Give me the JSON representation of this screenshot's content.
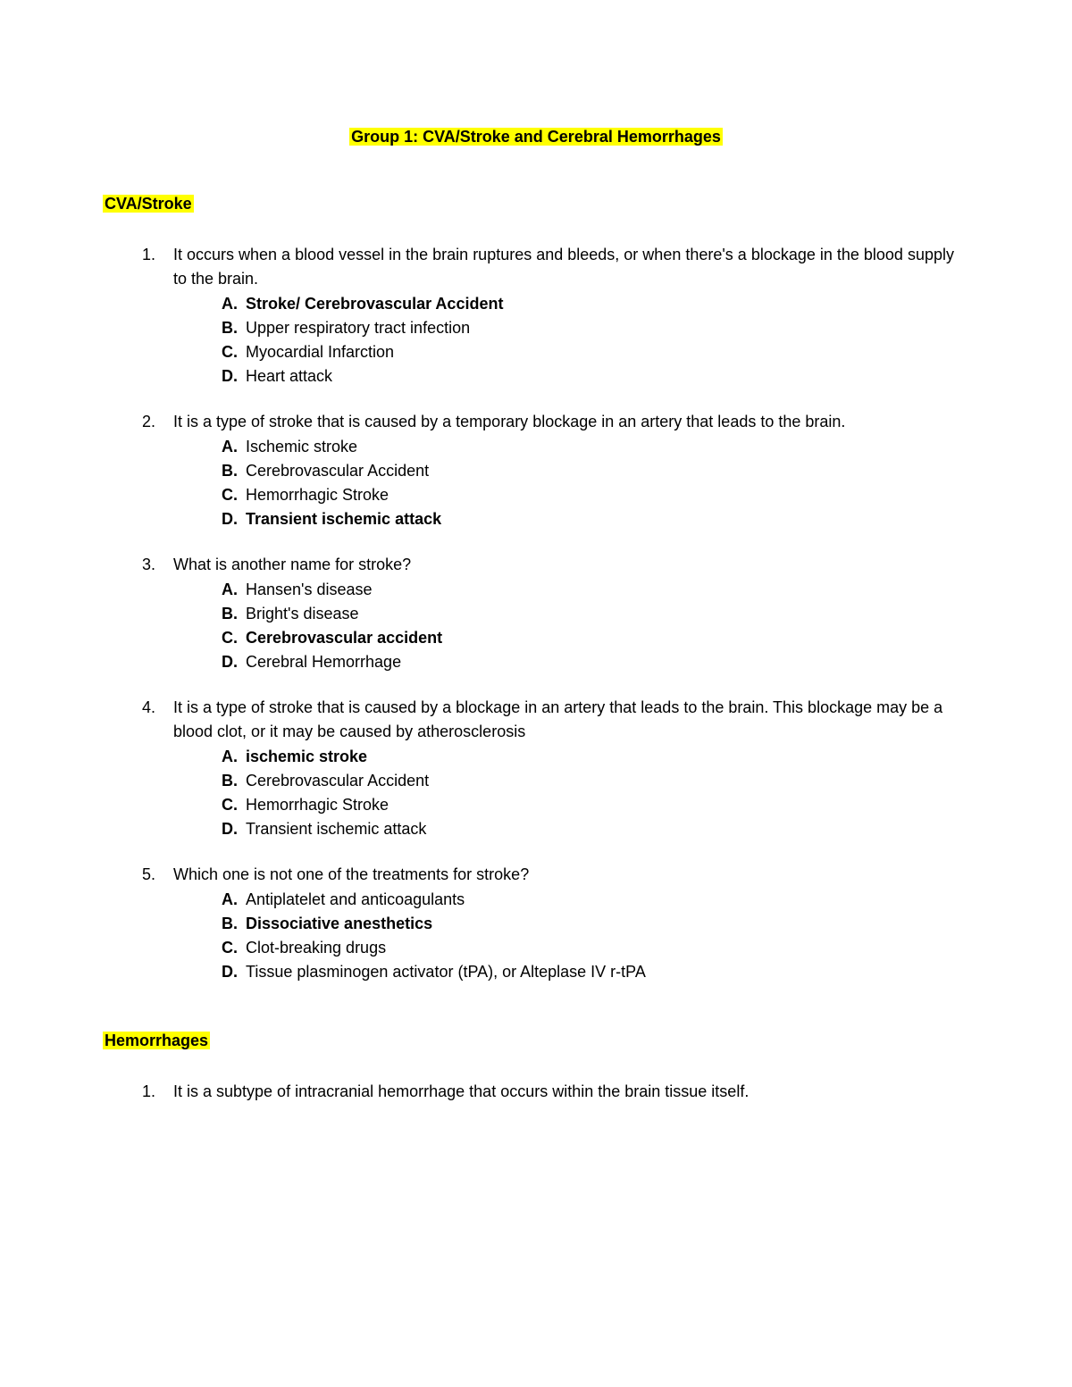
{
  "title": "Group 1: CVA/Stroke and Cerebral Hemorrhages",
  "sections": [
    {
      "heading": "CVA/Stroke",
      "questions": [
        {
          "number": "1.",
          "text": "It occurs when a blood vessel in the brain ruptures and bleeds, or when there's a blockage in the blood supply to the brain.",
          "options": [
            {
              "letter": "A.",
              "text": "Stroke/ Cerebrovascular Accident",
              "bold": true
            },
            {
              "letter": "B.",
              "text": "Upper respiratory tract infection",
              "bold": false
            },
            {
              "letter": "C.",
              "text": "Myocardial Infarction",
              "bold": false
            },
            {
              "letter": "D.",
              "text": "Heart attack",
              "bold": false
            }
          ]
        },
        {
          "number": "2.",
          "text": "It is a type of stroke  that is caused by a temporary blockage in an artery that leads to the brain.",
          "options": [
            {
              "letter": "A.",
              "text": "Ischemic stroke",
              "bold": false
            },
            {
              "letter": "B.",
              "text": "Cerebrovascular Accident",
              "bold": false
            },
            {
              "letter": "C.",
              "text": "Hemorrhagic Stroke",
              "bold": false
            },
            {
              "letter": "D.",
              "text": "Transient ischemic attack",
              "bold": true
            }
          ]
        },
        {
          "number": "3.",
          "text": "What is another name for stroke?",
          "options": [
            {
              "letter": "A.",
              "text": "Hansen's disease",
              "bold": false
            },
            {
              "letter": "B.",
              "text": "Bright's disease",
              "bold": false
            },
            {
              "letter": "C.",
              "text": "Cerebrovascular accident",
              "bold": true
            },
            {
              "letter": "D.",
              "text": "Cerebral Hemorrhage",
              "bold": false
            }
          ]
        },
        {
          "number": "4.",
          "text": "It is a type of stroke that is caused by a blockage in an artery that leads to the brain. This blockage may be a blood clot, or it may be caused by atherosclerosis",
          "options": [
            {
              "letter": "A.",
              "text": "ischemic stroke",
              "bold": true
            },
            {
              "letter": "B.",
              "text": "Cerebrovascular Accident",
              "bold": false
            },
            {
              "letter": "C.",
              "text": "Hemorrhagic Stroke",
              "bold": false
            },
            {
              "letter": "D.",
              "text": "Transient ischemic attack",
              "bold": false
            }
          ]
        },
        {
          "number": "5.",
          "text": "Which one is not one of the treatments for stroke?",
          "options": [
            {
              "letter": "A.",
              "text": "Antiplatelet and anticoagulants",
              "bold": false
            },
            {
              "letter": "B.",
              "text": "Dissociative anesthetics",
              "bold": true
            },
            {
              "letter": "C.",
              "text": "Clot-breaking drugs",
              "bold": false
            },
            {
              "letter": "D.",
              "text": "Tissue plasminogen activator (tPA), or Alteplase IV r-tPA",
              "bold": false
            }
          ]
        }
      ]
    },
    {
      "heading": "Hemorrhages",
      "questions": [
        {
          "number": "1.",
          "text": "It is a subtype of intracranial hemorrhage that occurs within the brain tissue itself.",
          "options": []
        }
      ]
    }
  ],
  "colors": {
    "highlight": "#ffff00",
    "text": "#000000",
    "background": "#ffffff"
  },
  "typography": {
    "font_family": "Arial, sans-serif",
    "font_size": 18,
    "line_height": 1.5
  }
}
